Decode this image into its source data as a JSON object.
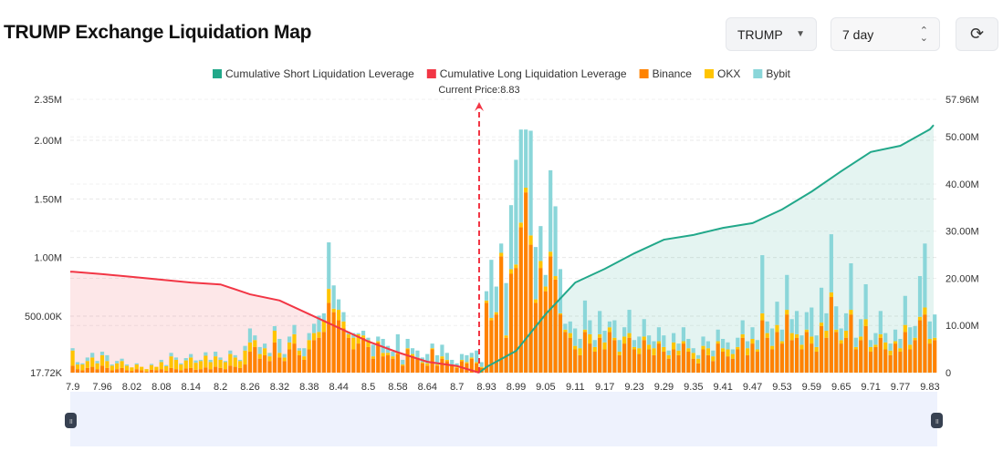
{
  "header": {
    "title": "TRUMP Exchange Liquidation Map",
    "symbol": "TRUMP",
    "range": "7 day"
  },
  "chart_data": {
    "type": "bar",
    "legend": [
      {
        "name": "Cumulative Short Liquidation Leverage",
        "color": "#22a88a"
      },
      {
        "name": "Cumulative Long Liquidation Leverage",
        "color": "#f23645"
      },
      {
        "name": "Binance",
        "color": "#ff8200"
      },
      {
        "name": "OKX",
        "color": "#ffc400"
      },
      {
        "name": "Bybit",
        "color": "#8ad6d9"
      }
    ],
    "legend_position": "top",
    "current_price_label": "Current Price:8.83",
    "current_price": 8.83,
    "x_tick_labels": [
      "7.9",
      "7.96",
      "8.02",
      "8.08",
      "8.14",
      "8.2",
      "8.26",
      "8.32",
      "8.38",
      "8.44",
      "8.5",
      "8.58",
      "8.64",
      "8.7",
      "8.93",
      "8.99",
      "9.05",
      "9.11",
      "9.17",
      "9.23",
      "9.29",
      "9.35",
      "9.41",
      "9.47",
      "9.53",
      "9.59",
      "9.65",
      "9.71",
      "9.77",
      "9.83"
    ],
    "y_left_ticks": [
      "2.35M",
      "2.00M",
      "1.50M",
      "1.00M",
      "500.00K",
      "17.72K"
    ],
    "y_left_range_k": [
      17.72,
      2350
    ],
    "y_right_ticks": [
      "57.96M",
      "50.00M",
      "40.00M",
      "30.00M",
      "20.00M",
      "10.00M",
      "0"
    ],
    "y_right_range_m": [
      0,
      57.96
    ],
    "grid": true,
    "bars_k": {
      "binance": [
        60,
        30,
        20,
        40,
        50,
        30,
        60,
        40,
        20,
        30,
        40,
        20,
        15,
        30,
        20,
        10,
        25,
        20,
        30,
        15,
        40,
        30,
        20,
        35,
        40,
        25,
        30,
        45,
        30,
        50,
        40,
        30,
        60,
        50,
        40,
        70,
        180,
        220,
        120,
        150,
        100,
        260,
        130,
        100,
        200,
        250,
        150,
        110,
        200,
        280,
        300,
        350,
        600,
        520,
        450,
        380,
        300,
        200,
        250,
        300,
        220,
        120,
        260,
        140,
        150,
        120,
        160,
        60,
        200,
        140,
        120,
        80,
        60,
        200,
        60,
        120,
        100,
        60,
        40,
        100,
        80,
        120,
        80,
        40,
        600,
        450,
        500,
        1000,
        300,
        850,
        900,
        1250,
        1550,
        1100,
        600,
        900,
        700,
        1000,
        800,
        500,
        350,
        300,
        200,
        150,
        350,
        250,
        180,
        300,
        200,
        350,
        280,
        150,
        250,
        300,
        200,
        160,
        280,
        200,
        150,
        250,
        180,
        120,
        200,
        150,
        250,
        180,
        120,
        80,
        200,
        150,
        100,
        250,
        180,
        140,
        120,
        200,
        300,
        150,
        250,
        180,
        450,
        300,
        200,
        350,
        250,
        500,
        280,
        300,
        200,
        350,
        250,
        180,
        400,
        300,
        650,
        350,
        250,
        300,
        500,
        200,
        280,
        400,
        180,
        220,
        300,
        200,
        150,
        250,
        180,
        350,
        200,
        280,
        450,
        500,
        250,
        280
      ],
      "okx": [
        130,
        40,
        50,
        60,
        80,
        50,
        90,
        60,
        40,
        50,
        60,
        40,
        30,
        40,
        30,
        20,
        40,
        30,
        60,
        40,
        100,
        80,
        50,
        70,
        90,
        60,
        70,
        100,
        60,
        90,
        70,
        60,
        100,
        80,
        60,
        120,
        80,
        60,
        40,
        60,
        40,
        100,
        40,
        30,
        60,
        80,
        40,
        30,
        80,
        60,
        50,
        100,
        120,
        30,
        90,
        60,
        30,
        100,
        80,
        20,
        60,
        20,
        10,
        30,
        20,
        20,
        10,
        10,
        10,
        20,
        10,
        10,
        20,
        10,
        10,
        20,
        10,
        10,
        10,
        10,
        10,
        10,
        10,
        10,
        20,
        20,
        20,
        30,
        20,
        40,
        30,
        40,
        40,
        80,
        30,
        60,
        40,
        40,
        30,
        10,
        20,
        40,
        30,
        60,
        20,
        80,
        40,
        30,
        60,
        40,
        20,
        30,
        60,
        40,
        20,
        50,
        30,
        40,
        60,
        20,
        40,
        30,
        60,
        40,
        20,
        30,
        50,
        40,
        30,
        60,
        40,
        20,
        30,
        60,
        40,
        20,
        30,
        60,
        40,
        20,
        60,
        40,
        30,
        60,
        20,
        40,
        60,
        30,
        40,
        20,
        60,
        40,
        30,
        60,
        40,
        20,
        30,
        60,
        40,
        20,
        30,
        60,
        40,
        20,
        30,
        60,
        40,
        20,
        30,
        60,
        40,
        20,
        30,
        60,
        40,
        20
      ],
      "bybit": [
        20,
        20,
        10,
        30,
        40,
        20,
        30,
        50,
        10,
        20,
        20,
        10,
        0,
        10,
        0,
        0,
        10,
        0,
        20,
        10,
        30,
        20,
        10,
        20,
        30,
        20,
        10,
        30,
        20,
        40,
        20,
        10,
        30,
        20,
        10,
        40,
        120,
        40,
        60,
        40,
        30,
        40,
        120,
        30,
        50,
        80,
        20,
        70,
        60,
        80,
        140,
        60,
        400,
        200,
        90,
        80,
        20,
        40,
        10,
        40,
        20,
        100,
        40,
        120,
        60,
        40,
        160,
        40,
        80,
        50,
        60,
        40,
        80,
        40,
        80,
        100,
        60,
        40,
        30,
        50,
        60,
        40,
        100,
        40,
        80,
        500,
        220,
        80,
        450,
        550,
        900,
        800,
        500,
        900,
        450,
        300,
        100,
        700,
        600,
        380,
        50,
        100,
        150,
        80,
        250,
        120,
        60,
        200,
        100,
        50,
        150,
        100,
        80,
        200,
        60,
        100,
        150,
        80,
        60,
        120,
        100,
        40,
        80,
        60,
        120,
        80,
        40,
        30,
        80,
        60,
        50,
        100,
        80,
        60,
        40,
        80,
        120,
        60,
        100,
        80,
        500,
        100,
        150,
        200,
        100,
        300,
        120,
        200,
        80,
        150,
        250,
        100,
        300,
        150,
        500,
        200,
        100,
        150,
        400,
        80,
        150,
        300,
        60,
        100,
        200,
        80,
        60,
        100,
        80,
        250,
        150,
        100,
        350,
        550,
        150,
        200
      ]
    },
    "cumulative_long_m": [
      [
        "7.9",
        21.4
      ],
      [
        "7.96",
        20.9
      ],
      [
        "8.02",
        20.3
      ],
      [
        "8.08",
        19.7
      ],
      [
        "8.14",
        19.1
      ],
      [
        "8.2",
        18.7
      ],
      [
        "8.26",
        16.6
      ],
      [
        "8.32",
        15.3
      ],
      [
        "8.38",
        12.4
      ],
      [
        "8.44",
        9.5
      ],
      [
        "8.5",
        6.6
      ],
      [
        "8.58",
        4.3
      ],
      [
        "8.64",
        2.3
      ],
      [
        "8.7",
        1.4
      ],
      [
        "8.83",
        0
      ]
    ],
    "cumulative_short_m": [
      [
        "8.83",
        0
      ],
      [
        "8.93",
        1.2
      ],
      [
        "8.99",
        4.6
      ],
      [
        "9.05",
        12.4
      ],
      [
        "9.11",
        19.1
      ],
      [
        "9.17",
        22
      ],
      [
        "9.23",
        25.3
      ],
      [
        "9.29",
        28.2
      ],
      [
        "9.35",
        29.2
      ],
      [
        "9.41",
        30.7
      ],
      [
        "9.47",
        31.7
      ],
      [
        "9.53",
        34.6
      ],
      [
        "9.59",
        38.4
      ],
      [
        "9.65",
        42.7
      ],
      [
        "9.71",
        46.8
      ],
      [
        "9.77",
        48.1
      ],
      [
        "9.83",
        51.6
      ]
    ]
  }
}
